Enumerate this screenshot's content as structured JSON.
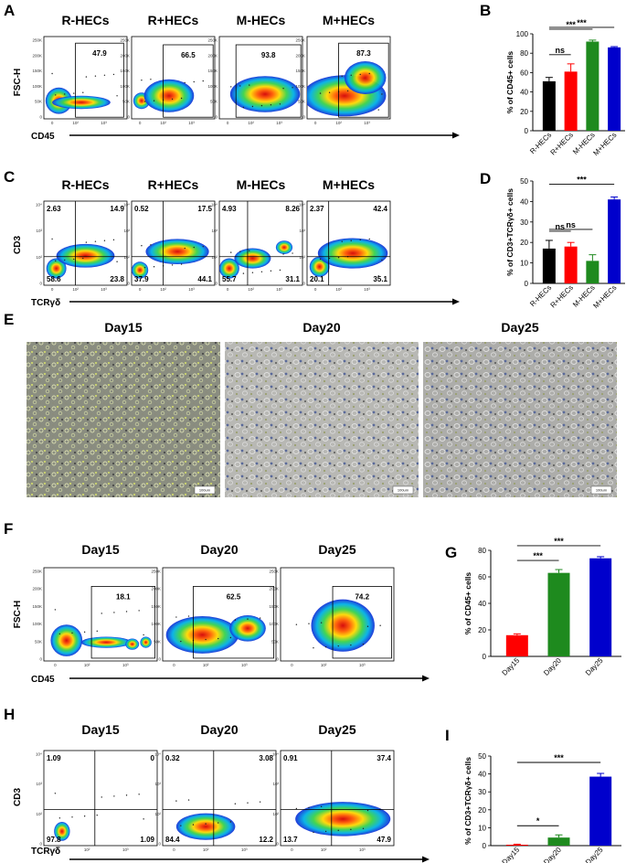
{
  "panel_labels": {
    "A": "A",
    "B": "B",
    "C": "C",
    "D": "D",
    "E": "E",
    "F": "F",
    "G": "G",
    "H": "H",
    "I": "I"
  },
  "colors": {
    "black": "#000000",
    "red": "#ff0000",
    "green": "#1e8a1e",
    "blue": "#0000cc"
  },
  "flow_sections": [
    {
      "id": "A",
      "y_label": "FSC-H",
      "x_label": "CD45",
      "y_ticks": [
        "250K",
        "200K",
        "150K",
        "100K",
        "50K",
        "0"
      ],
      "x_ticks": [
        "0",
        "10²",
        "10³"
      ],
      "kind": "gate",
      "plots": [
        {
          "title": "R-HECs",
          "values": [
            "47.9"
          ]
        },
        {
          "title": "R+HECs",
          "values": [
            "66.5"
          ]
        },
        {
          "title": "M-HECs",
          "values": [
            "93.8"
          ]
        },
        {
          "title": "M+HECs",
          "values": [
            "87.3"
          ]
        }
      ]
    },
    {
      "id": "C",
      "y_label": "CD3",
      "x_label": "TCRγδ",
      "y_ticks": [
        "10⁴",
        "10³",
        "10²",
        "0"
      ],
      "x_ticks": [
        "0",
        "10²",
        "10³"
      ],
      "kind": "quad",
      "plots": [
        {
          "title": "R-HECs",
          "values": [
            "2.63",
            "14.9",
            "58.6",
            "23.8"
          ]
        },
        {
          "title": "R+HECs",
          "values": [
            "0.52",
            "17.5",
            "37.9",
            "44.1"
          ]
        },
        {
          "title": "M-HECs",
          "values": [
            "4.93",
            "8.26",
            "55.7",
            "31.1"
          ]
        },
        {
          "title": "M+HECs",
          "values": [
            "2.37",
            "42.4",
            "20.1",
            "35.1"
          ]
        }
      ]
    },
    {
      "id": "F",
      "y_label": "FSC-H",
      "x_label": "CD45",
      "y_ticks": [
        "250K",
        "200K",
        "150K",
        "100K",
        "50K",
        "0"
      ],
      "x_ticks": [
        "0",
        "10²",
        "10³"
      ],
      "kind": "gate",
      "plots": [
        {
          "title": "Day15",
          "values": [
            "18.1"
          ]
        },
        {
          "title": "Day20",
          "values": [
            "62.5"
          ]
        },
        {
          "title": "Day25",
          "values": [
            "74.2"
          ]
        }
      ]
    },
    {
      "id": "H",
      "y_label": "CD3",
      "x_label": "TCRγδ",
      "y_ticks": [
        "10⁴",
        "10³",
        "10²",
        "0"
      ],
      "x_ticks": [
        "0",
        "10²",
        "10³"
      ],
      "kind": "quad",
      "plots": [
        {
          "title": "Day15",
          "values": [
            "1.09",
            "0",
            "97.8",
            "1.09"
          ]
        },
        {
          "title": "Day20",
          "values": [
            "0.32",
            "3.08",
            "84.4",
            "12.2"
          ]
        },
        {
          "title": "Day25",
          "values": [
            "0.91",
            "37.4",
            "13.7",
            "47.9"
          ]
        }
      ]
    }
  ],
  "micrographs": {
    "titles": [
      "Day15",
      "Day20",
      "Day25"
    ],
    "scale_bar": "100um"
  },
  "chart_data": [
    {
      "id": "B",
      "type": "bar",
      "categories": [
        "R-HECs",
        "R+HECs",
        "M-HECs",
        "M+HECs"
      ],
      "values": [
        51,
        61,
        92,
        86
      ],
      "errors": [
        4,
        8,
        1.5,
        0.8
      ],
      "colors": [
        "#000000",
        "#ff0000",
        "#1e8a1e",
        "#0000cc"
      ],
      "ylabel": "% of CD45+ cells",
      "ylim": [
        0,
        100
      ],
      "yticks": [
        0,
        20,
        40,
        60,
        80,
        100
      ],
      "significance": [
        {
          "from": 0,
          "to": 1,
          "label": "ns"
        },
        {
          "from": 0,
          "to": 2,
          "label": "***"
        },
        {
          "from": 0,
          "to": 3,
          "label": "***"
        }
      ]
    },
    {
      "id": "D",
      "type": "bar",
      "categories": [
        "R-HECs",
        "R+HECs",
        "M-HECs",
        "M+HECs"
      ],
      "values": [
        17,
        18,
        11,
        41
      ],
      "errors": [
        4,
        2,
        3,
        1.2
      ],
      "colors": [
        "#000000",
        "#ff0000",
        "#1e8a1e",
        "#0000cc"
      ],
      "ylabel": "% of CD3+TCRγδ+ cells",
      "ylim": [
        0,
        50
      ],
      "yticks": [
        0,
        10,
        20,
        30,
        40,
        50
      ],
      "significance": [
        {
          "from": 0,
          "to": 1,
          "label": "ns"
        },
        {
          "from": 0,
          "to": 2,
          "label": "ns"
        },
        {
          "from": 0,
          "to": 3,
          "label": "***"
        }
      ]
    },
    {
      "id": "G",
      "type": "bar",
      "categories": [
        "Day15",
        "Day20",
        "Day25"
      ],
      "values": [
        16,
        63,
        74
      ],
      "errors": [
        1,
        2.5,
        1.2
      ],
      "colors": [
        "#ff0000",
        "#1e8a1e",
        "#0000cc"
      ],
      "ylabel": "% of CD45+ cells",
      "ylim": [
        0,
        80
      ],
      "yticks": [
        0,
        20,
        40,
        60,
        80
      ],
      "significance": [
        {
          "from": 0,
          "to": 1,
          "label": "***"
        },
        {
          "from": 0,
          "to": 2,
          "label": "***"
        }
      ]
    },
    {
      "id": "I",
      "type": "bar",
      "categories": [
        "Day15",
        "Day20",
        "Day25"
      ],
      "values": [
        0.5,
        4.5,
        38.5
      ],
      "errors": [
        0.3,
        1.5,
        1.8
      ],
      "colors": [
        "#ff0000",
        "#1e8a1e",
        "#0000cc"
      ],
      "ylabel": "% of CD3+TCRγδ+ cells",
      "ylim": [
        0,
        50
      ],
      "yticks": [
        0,
        10,
        20,
        30,
        40,
        50
      ],
      "significance": [
        {
          "from": 0,
          "to": 1,
          "label": "*"
        },
        {
          "from": 0,
          "to": 2,
          "label": "***"
        }
      ]
    }
  ]
}
